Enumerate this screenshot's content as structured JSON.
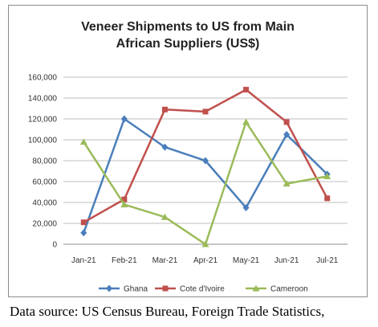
{
  "chart_data": {
    "type": "line",
    "title_lines": [
      "Veneer Shipments to US from Main",
      "African Suppliers (US$)"
    ],
    "xlabel": "",
    "ylabel": "",
    "categories": [
      "Jan-21",
      "Feb-21",
      "Mar-21",
      "Apr-21",
      "May-21",
      "Jun-21",
      "Jul-21"
    ],
    "ylim": [
      0,
      160000
    ],
    "yticks": [
      0,
      20000,
      40000,
      60000,
      80000,
      100000,
      120000,
      140000,
      160000
    ],
    "ytick_labels": [
      "0",
      "20,000",
      "40,000",
      "60,000",
      "80,000",
      "100,000",
      "120,000",
      "140,000",
      "160,000"
    ],
    "grid": true,
    "legend_position": "bottom",
    "series": [
      {
        "name": "Ghana",
        "color": "#4a7ebb",
        "marker": "diamond",
        "values": [
          11000,
          120000,
          93000,
          80000,
          35000,
          105000,
          67000
        ]
      },
      {
        "name": "Cote d'Ivoire",
        "color": "#c0504d",
        "marker": "square",
        "values": [
          21000,
          43000,
          129000,
          127000,
          148000,
          117000,
          44000
        ]
      },
      {
        "name": "Cameroon",
        "color": "#9bbb59",
        "marker": "triangle",
        "values": [
          98000,
          38000,
          26000,
          0,
          117000,
          58000,
          65000
        ]
      }
    ]
  },
  "source_note": "Data source: US Census Bureau, Foreign Trade Statistics,"
}
